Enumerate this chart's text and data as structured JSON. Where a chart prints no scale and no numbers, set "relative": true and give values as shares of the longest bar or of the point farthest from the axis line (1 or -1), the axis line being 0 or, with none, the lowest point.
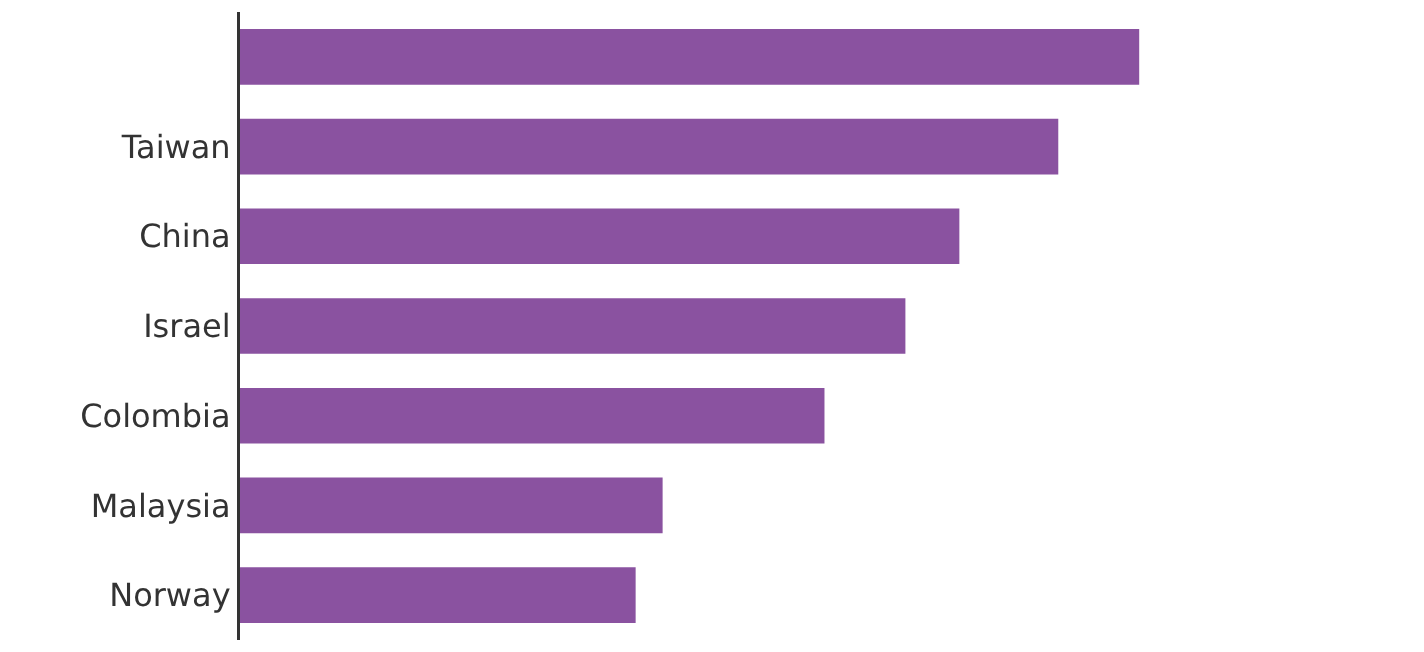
{
  "chart_data": {
    "type": "bar",
    "orientation": "horizontal",
    "relative": true,
    "categories": [
      null,
      "Taiwan",
      "China",
      "Israel",
      "Colombia",
      "Malaysia",
      "Norway"
    ],
    "values": [
      1,
      0.91,
      0.8,
      0.74,
      0.65,
      0.47,
      0.44
    ],
    "color": "#8a52a0"
  }
}
